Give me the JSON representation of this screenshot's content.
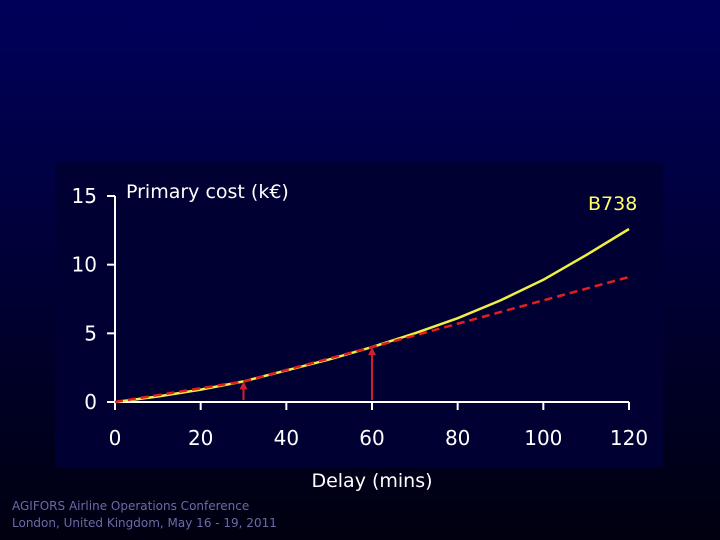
{
  "chart_data": {
    "type": "line",
    "ylabel": "Primary cost (k€)",
    "xlabel": "Delay (mins)",
    "xlim": [
      0,
      120
    ],
    "ylim": [
      0,
      15
    ],
    "x_ticks": [
      0,
      20,
      40,
      60,
      80,
      100,
      120
    ],
    "y_ticks": [
      0,
      5,
      10,
      15
    ],
    "grid": false,
    "series": [
      {
        "name": "B738",
        "style": "solid",
        "color": "#f0f040",
        "x": [
          0,
          10,
          20,
          30,
          40,
          50,
          60,
          70,
          80,
          90,
          100,
          110,
          120
        ],
        "y": [
          0.0,
          0.4,
          0.9,
          1.5,
          2.3,
          3.1,
          4.0,
          5.0,
          6.1,
          7.4,
          8.9,
          10.7,
          12.6
        ]
      },
      {
        "style": "dashed",
        "color": "#e02020",
        "x": [
          0,
          30,
          60,
          120
        ],
        "y": [
          0.0,
          1.5,
          4.0,
          9.1
        ]
      }
    ],
    "markers": [
      {
        "x": 30,
        "y": 1.5,
        "color": "#d02030"
      },
      {
        "x": 60,
        "y": 4.0,
        "color": "#d02030"
      }
    ]
  },
  "footer": {
    "line1": "AGIFORS Airline Operations Conference",
    "line2": "London, United Kingdom, May 16 - 19, 2011"
  },
  "colors": {
    "plot_background": "#000033",
    "axis": "#ffffff"
  }
}
